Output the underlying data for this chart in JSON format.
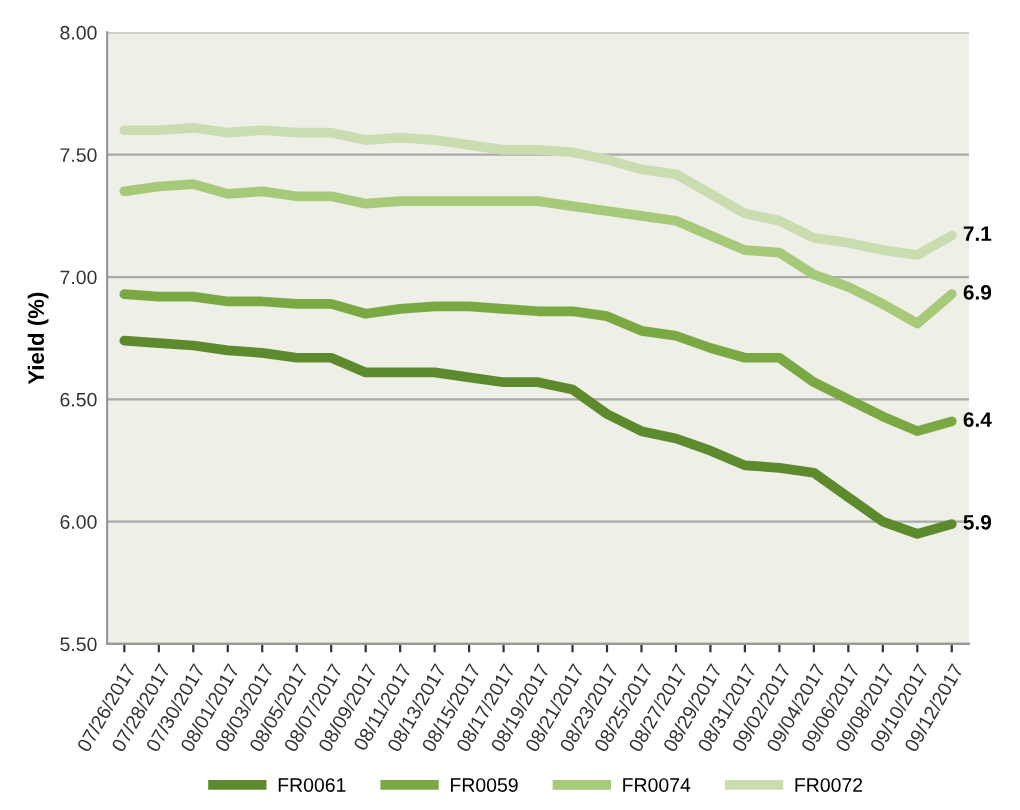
{
  "chart_data": {
    "type": "line",
    "ylabel": "Yield (%)",
    "categories": [
      "07/26/2017",
      "07/28/2017",
      "07/30/2017",
      "08/01/2017",
      "08/03/2017",
      "08/05/2017",
      "08/07/2017",
      "08/09/2017",
      "08/11/2017",
      "08/13/2017",
      "08/15/2017",
      "08/17/2017",
      "08/19/2017",
      "08/21/2017",
      "08/23/2017",
      "08/25/2017",
      "08/27/2017",
      "08/29/2017",
      "08/31/2017",
      "09/02/2017",
      "09/04/2017",
      "09/06/2017",
      "09/08/2017",
      "09/10/2017",
      "09/12/2017"
    ],
    "series": [
      {
        "name": "FR0061",
        "color": "#5e8a2e",
        "values": [
          6.74,
          6.73,
          6.72,
          6.7,
          6.69,
          6.67,
          6.67,
          6.61,
          6.61,
          6.61,
          6.59,
          6.57,
          6.57,
          6.54,
          6.44,
          6.37,
          6.34,
          6.29,
          6.23,
          6.22,
          6.2,
          6.1,
          6.0,
          5.95,
          5.99
        ]
      },
      {
        "name": "FR0059",
        "color": "#7aa843",
        "values": [
          6.93,
          6.92,
          6.92,
          6.9,
          6.9,
          6.89,
          6.89,
          6.85,
          6.87,
          6.88,
          6.88,
          6.87,
          6.86,
          6.86,
          6.84,
          6.78,
          6.76,
          6.71,
          6.67,
          6.67,
          6.57,
          6.5,
          6.43,
          6.37,
          6.41
        ]
      },
      {
        "name": "FR0074",
        "color": "#a6c97a",
        "values": [
          7.35,
          7.37,
          7.38,
          7.34,
          7.35,
          7.33,
          7.33,
          7.3,
          7.31,
          7.31,
          7.31,
          7.31,
          7.31,
          7.29,
          7.27,
          7.25,
          7.23,
          7.17,
          7.11,
          7.1,
          7.01,
          6.96,
          6.89,
          6.81,
          6.93
        ]
      },
      {
        "name": "FR0072",
        "color": "#c9ddb0",
        "values": [
          7.6,
          7.6,
          7.61,
          7.59,
          7.6,
          7.59,
          7.59,
          7.56,
          7.57,
          7.56,
          7.54,
          7.52,
          7.52,
          7.51,
          7.48,
          7.44,
          7.42,
          7.34,
          7.26,
          7.23,
          7.16,
          7.14,
          7.11,
          7.09,
          7.17
        ]
      }
    ],
    "ylim": [
      5.5,
      8.0
    ],
    "yticks": [
      {
        "value": 5.5,
        "label": "5.50"
      },
      {
        "value": 6.0,
        "label": "6.00"
      },
      {
        "value": 6.5,
        "label": "6.50"
      },
      {
        "value": 7.0,
        "label": "7.00"
      },
      {
        "value": 7.5,
        "label": "7.50"
      },
      {
        "value": 8.0,
        "label": "8.00"
      }
    ],
    "annotations": [
      {
        "text": "7.1",
        "x": "09/12/2017",
        "y": 7.17
      },
      {
        "text": "6.9",
        "x": "09/12/2017",
        "y": 6.93
      },
      {
        "text": "6.4",
        "x": "09/12/2017",
        "y": 6.41
      },
      {
        "text": "5.9",
        "x": "09/12/2017",
        "y": 5.99
      }
    ],
    "grid": "y",
    "legend": "bottom",
    "marker": "none",
    "line_style": "solid"
  }
}
